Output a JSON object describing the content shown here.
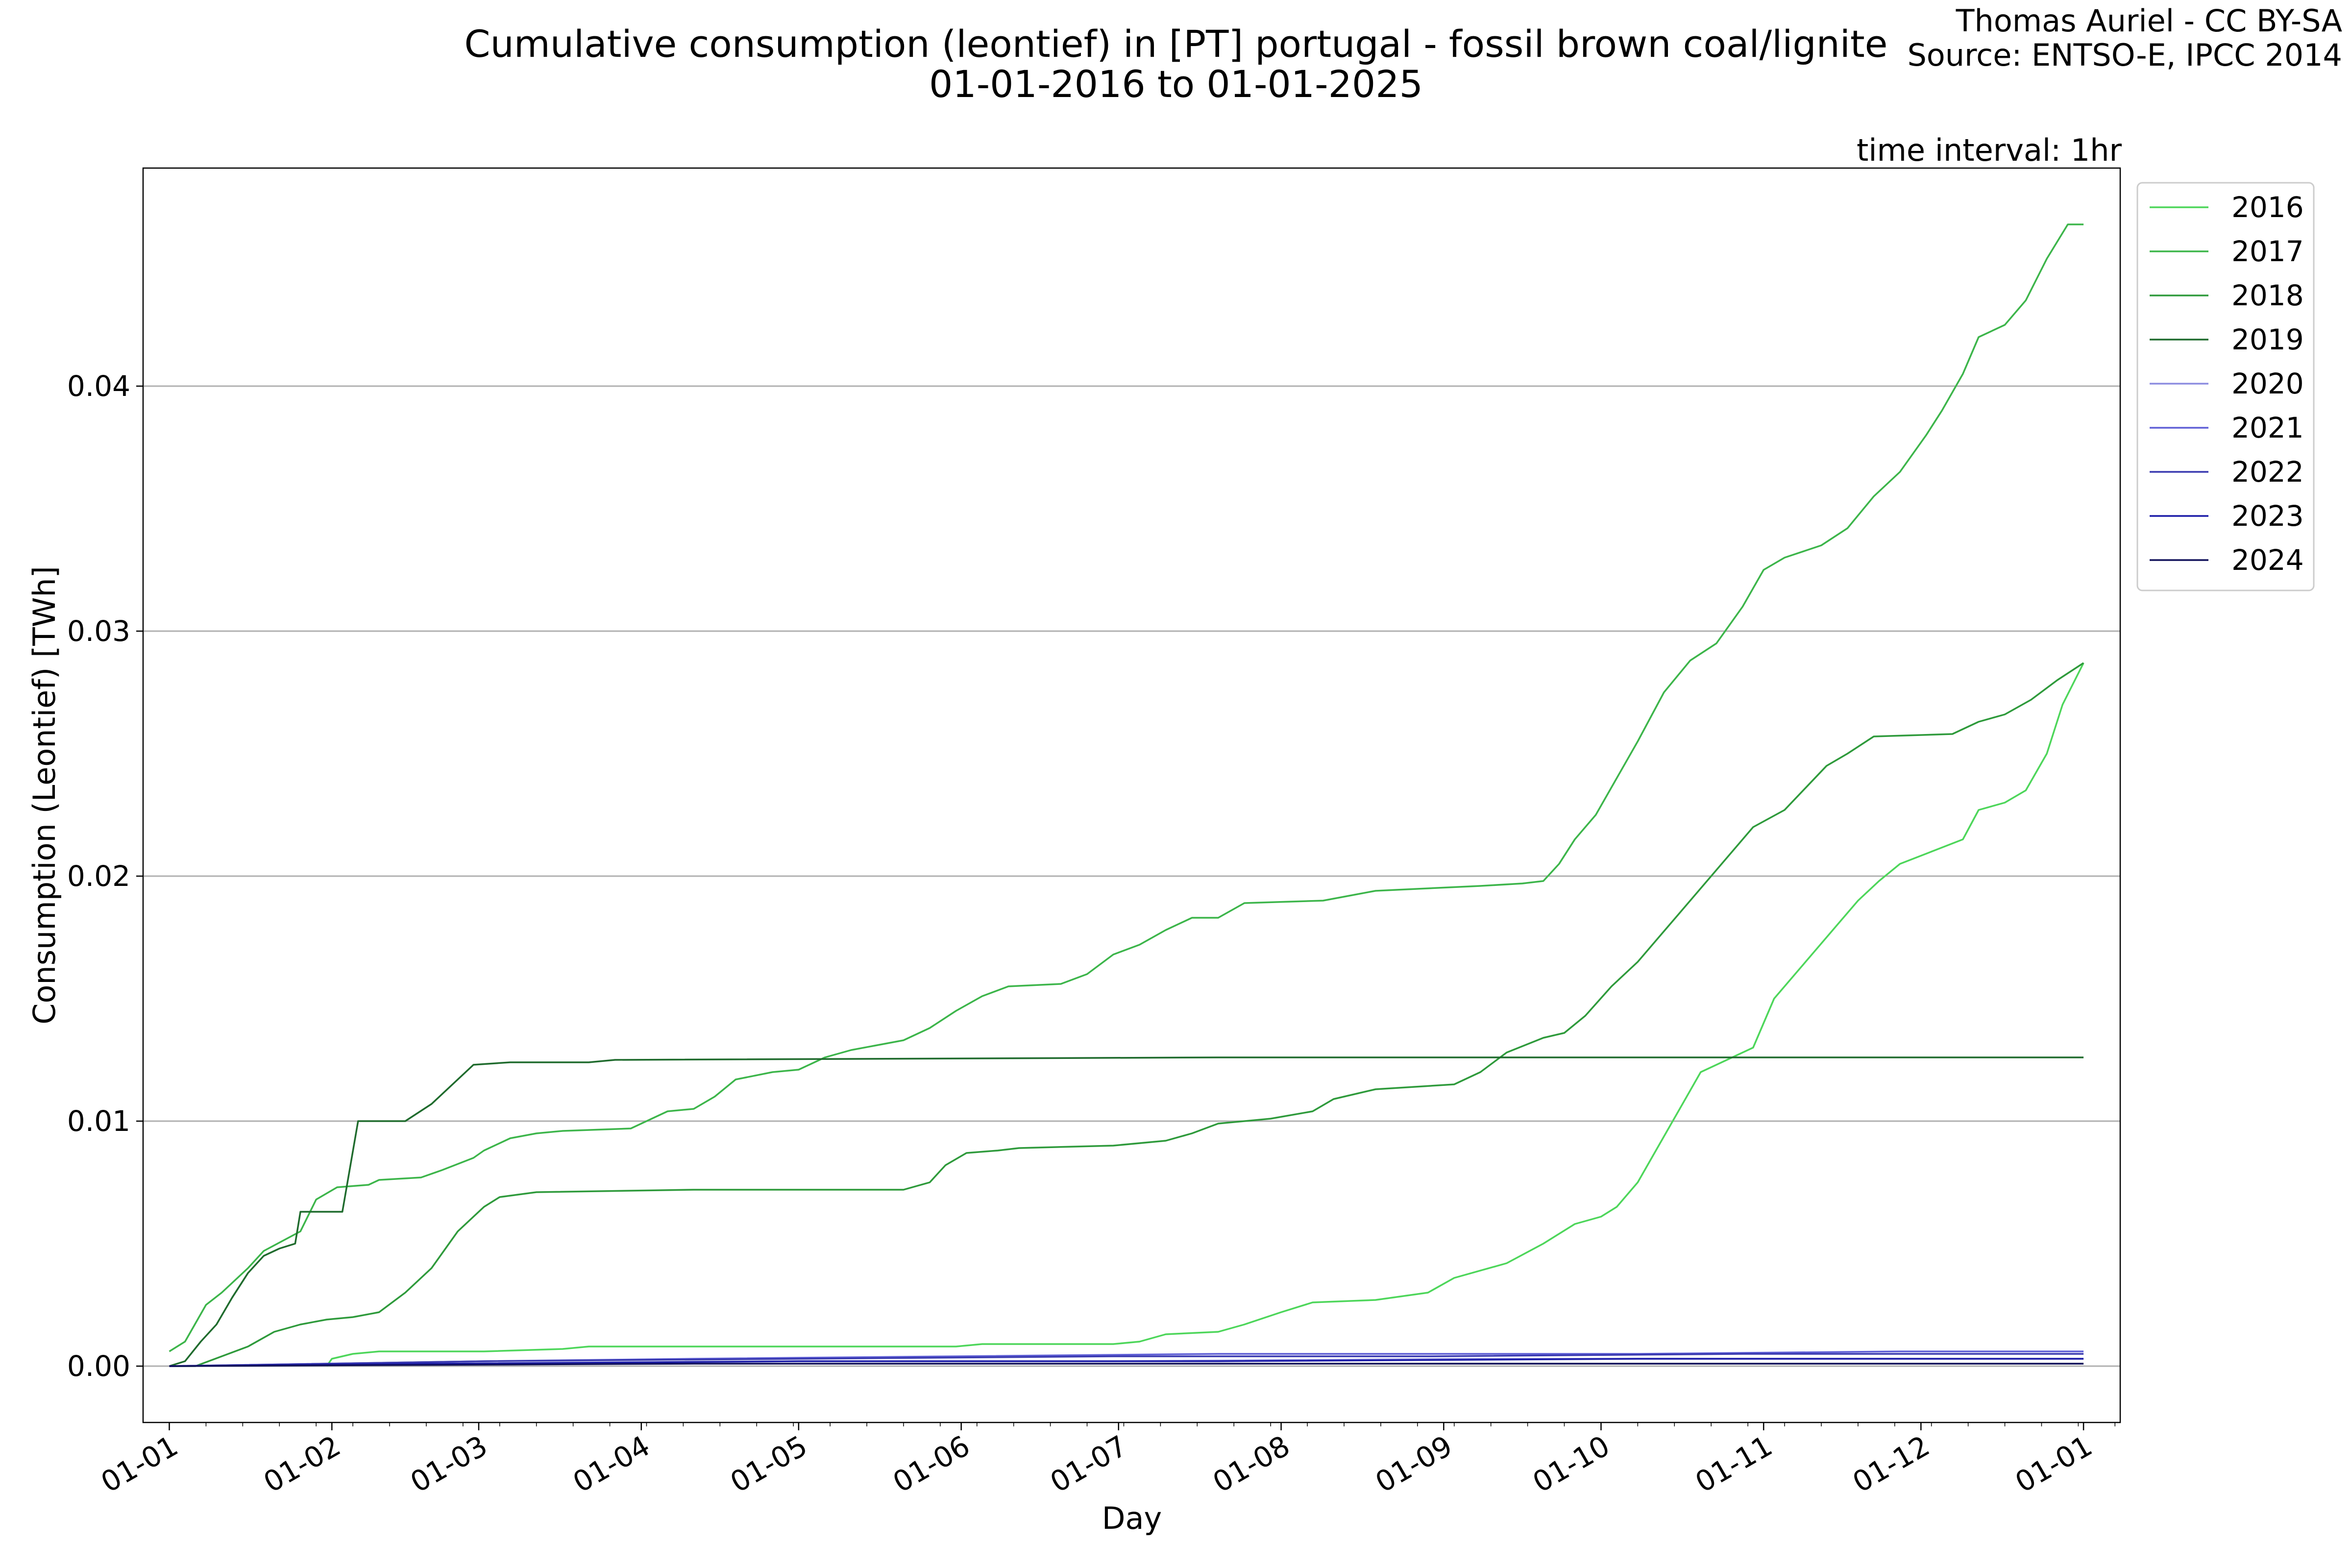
{
  "chart_data": {
    "type": "line",
    "title": "Cumulative consumption (leontief) in [PT] portugal - fossil brown coal/lignite",
    "subtitle": "01-01-2016 to 01-01-2025",
    "credit_line1": "Thomas Auriel - CC BY-SA",
    "credit_line2": "Source: ENTSO-E, IPCC 2014",
    "interval_note": "time interval: 1hr",
    "xlabel": "Day",
    "ylabel": "Consumption (Leontief) [TWh]",
    "xlim": [
      -5,
      372
    ],
    "ylim": [
      -0.0023,
      0.0489
    ],
    "grid": "horizontal",
    "legend_position": "outside-top-right",
    "x_ticks": [
      {
        "day": 0,
        "label": "01-01"
      },
      {
        "day": 31,
        "label": "01-02"
      },
      {
        "day": 59,
        "label": "01-03"
      },
      {
        "day": 90,
        "label": "01-04"
      },
      {
        "day": 120,
        "label": "01-05"
      },
      {
        "day": 151,
        "label": "01-06"
      },
      {
        "day": 181,
        "label": "01-07"
      },
      {
        "day": 212,
        "label": "01-08"
      },
      {
        "day": 243,
        "label": "01-09"
      },
      {
        "day": 273,
        "label": "01-10"
      },
      {
        "day": 304,
        "label": "01-11"
      },
      {
        "day": 334,
        "label": "01-12"
      },
      {
        "day": 365,
        "label": "01-01"
      }
    ],
    "y_ticks": [
      {
        "value": 0.0,
        "label": "0.00"
      },
      {
        "value": 0.01,
        "label": "0.01"
      },
      {
        "value": 0.02,
        "label": "0.02"
      },
      {
        "value": 0.03,
        "label": "0.03"
      },
      {
        "value": 0.04,
        "label": "0.04"
      }
    ],
    "series": [
      {
        "name": "2016",
        "color": "#4dd65a",
        "points": [
          [
            30,
            0
          ],
          [
            31,
            0.0003
          ],
          [
            35,
            0.0005
          ],
          [
            40,
            0.0006
          ],
          [
            60,
            0.0006
          ],
          [
            75,
            0.0007
          ],
          [
            80,
            0.0008
          ],
          [
            150,
            0.0008
          ],
          [
            155,
            0.0009
          ],
          [
            180,
            0.0009
          ],
          [
            185,
            0.001
          ],
          [
            190,
            0.0013
          ],
          [
            200,
            0.0014
          ],
          [
            205,
            0.0017
          ],
          [
            212,
            0.0022
          ],
          [
            218,
            0.0026
          ],
          [
            230,
            0.0027
          ],
          [
            240,
            0.003
          ],
          [
            245,
            0.0036
          ],
          [
            255,
            0.0042
          ],
          [
            262,
            0.005
          ],
          [
            268,
            0.0058
          ],
          [
            273,
            0.0061
          ],
          [
            276,
            0.0065
          ],
          [
            280,
            0.0075
          ],
          [
            284,
            0.009
          ],
          [
            288,
            0.0105
          ],
          [
            292,
            0.012
          ],
          [
            298,
            0.0126
          ],
          [
            302,
            0.013
          ],
          [
            306,
            0.015
          ],
          [
            310,
            0.016
          ],
          [
            314,
            0.017
          ],
          [
            318,
            0.018
          ],
          [
            322,
            0.019
          ],
          [
            326,
            0.0198
          ],
          [
            330,
            0.0205
          ],
          [
            336,
            0.021
          ],
          [
            342,
            0.0215
          ],
          [
            345,
            0.0227
          ],
          [
            350,
            0.023
          ],
          [
            354,
            0.0235
          ],
          [
            358,
            0.025
          ],
          [
            361,
            0.027
          ],
          [
            365,
            0.0287
          ]
        ]
      },
      {
        "name": "2017",
        "color": "#3cb54a",
        "points": [
          [
            0,
            0.0006
          ],
          [
            3,
            0.001
          ],
          [
            7,
            0.0025
          ],
          [
            10,
            0.003
          ],
          [
            15,
            0.004
          ],
          [
            18,
            0.0047
          ],
          [
            25,
            0.0055
          ],
          [
            28,
            0.0068
          ],
          [
            32,
            0.0073
          ],
          [
            38,
            0.0074
          ],
          [
            40,
            0.0076
          ],
          [
            48,
            0.0077
          ],
          [
            52,
            0.008
          ],
          [
            58,
            0.0085
          ],
          [
            60,
            0.0088
          ],
          [
            65,
            0.0093
          ],
          [
            70,
            0.0095
          ],
          [
            75,
            0.0096
          ],
          [
            88,
            0.0097
          ],
          [
            92,
            0.0101
          ],
          [
            95,
            0.0104
          ],
          [
            100,
            0.0105
          ],
          [
            104,
            0.011
          ],
          [
            108,
            0.0117
          ],
          [
            115,
            0.012
          ],
          [
            120,
            0.0121
          ],
          [
            125,
            0.0126
          ],
          [
            130,
            0.0129
          ],
          [
            140,
            0.0133
          ],
          [
            145,
            0.0138
          ],
          [
            150,
            0.0145
          ],
          [
            155,
            0.0151
          ],
          [
            160,
            0.0155
          ],
          [
            170,
            0.0156
          ],
          [
            175,
            0.016
          ],
          [
            180,
            0.0168
          ],
          [
            185,
            0.0172
          ],
          [
            190,
            0.0178
          ],
          [
            195,
            0.0183
          ],
          [
            200,
            0.0183
          ],
          [
            205,
            0.0189
          ],
          [
            220,
            0.019
          ],
          [
            225,
            0.0192
          ],
          [
            230,
            0.0194
          ],
          [
            250,
            0.0196
          ],
          [
            258,
            0.0197
          ],
          [
            262,
            0.0198
          ],
          [
            265,
            0.0205
          ],
          [
            268,
            0.0215
          ],
          [
            272,
            0.0225
          ],
          [
            276,
            0.024
          ],
          [
            280,
            0.0255
          ],
          [
            285,
            0.0275
          ],
          [
            290,
            0.0288
          ],
          [
            295,
            0.0295
          ],
          [
            300,
            0.031
          ],
          [
            304,
            0.0325
          ],
          [
            308,
            0.033
          ],
          [
            315,
            0.0335
          ],
          [
            320,
            0.0342
          ],
          [
            325,
            0.0355
          ],
          [
            330,
            0.0365
          ],
          [
            335,
            0.038
          ],
          [
            338,
            0.039
          ],
          [
            342,
            0.0405
          ],
          [
            345,
            0.042
          ],
          [
            350,
            0.0425
          ],
          [
            354,
            0.0435
          ],
          [
            358,
            0.0452
          ],
          [
            362,
            0.0466
          ],
          [
            365,
            0.0466
          ]
        ]
      },
      {
        "name": "2018",
        "color": "#2e9a3b",
        "points": [
          [
            0,
            0
          ],
          [
            5,
            0
          ],
          [
            10,
            0.0004
          ],
          [
            15,
            0.0008
          ],
          [
            20,
            0.0014
          ],
          [
            25,
            0.0017
          ],
          [
            30,
            0.0019
          ],
          [
            35,
            0.002
          ],
          [
            40,
            0.0022
          ],
          [
            45,
            0.003
          ],
          [
            50,
            0.004
          ],
          [
            55,
            0.0055
          ],
          [
            60,
            0.0065
          ],
          [
            63,
            0.0069
          ],
          [
            70,
            0.0071
          ],
          [
            100,
            0.0072
          ],
          [
            140,
            0.0072
          ],
          [
            145,
            0.0075
          ],
          [
            148,
            0.0082
          ],
          [
            152,
            0.0087
          ],
          [
            158,
            0.0088
          ],
          [
            162,
            0.0089
          ],
          [
            180,
            0.009
          ],
          [
            190,
            0.0092
          ],
          [
            195,
            0.0095
          ],
          [
            200,
            0.0099
          ],
          [
            210,
            0.0101
          ],
          [
            218,
            0.0104
          ],
          [
            222,
            0.0109
          ],
          [
            230,
            0.0113
          ],
          [
            245,
            0.0115
          ],
          [
            250,
            0.012
          ],
          [
            255,
            0.0128
          ],
          [
            262,
            0.0134
          ],
          [
            266,
            0.0136
          ],
          [
            270,
            0.0143
          ],
          [
            275,
            0.0155
          ],
          [
            280,
            0.0165
          ],
          [
            284,
            0.0175
          ],
          [
            290,
            0.019
          ],
          [
            294,
            0.02
          ],
          [
            298,
            0.021
          ],
          [
            302,
            0.022
          ],
          [
            308,
            0.0227
          ],
          [
            312,
            0.0236
          ],
          [
            316,
            0.0245
          ],
          [
            320,
            0.025
          ],
          [
            325,
            0.0257
          ],
          [
            340,
            0.0258
          ],
          [
            345,
            0.0263
          ],
          [
            350,
            0.0266
          ],
          [
            355,
            0.0272
          ],
          [
            360,
            0.028
          ],
          [
            365,
            0.0287
          ]
        ]
      },
      {
        "name": "2019",
        "color": "#1f6b2d",
        "points": [
          [
            0,
            0
          ],
          [
            3,
            0.0002
          ],
          [
            6,
            0.001
          ],
          [
            9,
            0.0017
          ],
          [
            12,
            0.0028
          ],
          [
            15,
            0.0038
          ],
          [
            18,
            0.0045
          ],
          [
            21,
            0.0048
          ],
          [
            24,
            0.005
          ],
          [
            25,
            0.0063
          ],
          [
            33,
            0.0063
          ],
          [
            36,
            0.01
          ],
          [
            45,
            0.01
          ],
          [
            50,
            0.0107
          ],
          [
            55,
            0.0117
          ],
          [
            58,
            0.0123
          ],
          [
            65,
            0.0124
          ],
          [
            80,
            0.0124
          ],
          [
            85,
            0.0125
          ],
          [
            200,
            0.0126
          ],
          [
            365,
            0.0126
          ]
        ]
      },
      {
        "name": "2020",
        "color": "#8c8ce0",
        "points": [
          [
            0,
            0
          ],
          [
            60,
            0.0001
          ],
          [
            120,
            0.0002
          ],
          [
            180,
            0.0002
          ],
          [
            250,
            0.0003
          ],
          [
            300,
            0.0003
          ],
          [
            365,
            0.0003
          ]
        ]
      },
      {
        "name": "2021",
        "color": "#5f5fd6",
        "points": [
          [
            0,
            0
          ],
          [
            60,
            0.0002
          ],
          [
            100,
            0.0003
          ],
          [
            150,
            0.0004
          ],
          [
            200,
            0.0005
          ],
          [
            280,
            0.0005
          ],
          [
            330,
            0.0006
          ],
          [
            365,
            0.0006
          ]
        ]
      },
      {
        "name": "2022",
        "color": "#3a3ab0",
        "points": [
          [
            0,
            0
          ],
          [
            60,
            0.0002
          ],
          [
            120,
            0.0003
          ],
          [
            180,
            0.0004
          ],
          [
            240,
            0.0004
          ],
          [
            300,
            0.0005
          ],
          [
            365,
            0.0005
          ]
        ]
      },
      {
        "name": "2023",
        "color": "#1c1ca8",
        "points": [
          [
            0,
            0
          ],
          [
            50,
            0.0001
          ],
          [
            120,
            0.0002
          ],
          [
            200,
            0.0002
          ],
          [
            280,
            0.0003
          ],
          [
            365,
            0.0003
          ]
        ]
      },
      {
        "name": "2024",
        "color": "#10105a",
        "points": [
          [
            0,
            0
          ],
          [
            100,
            0.0001
          ],
          [
            200,
            0.0001
          ],
          [
            300,
            0.0001
          ],
          [
            365,
            0.0001
          ]
        ]
      }
    ]
  }
}
